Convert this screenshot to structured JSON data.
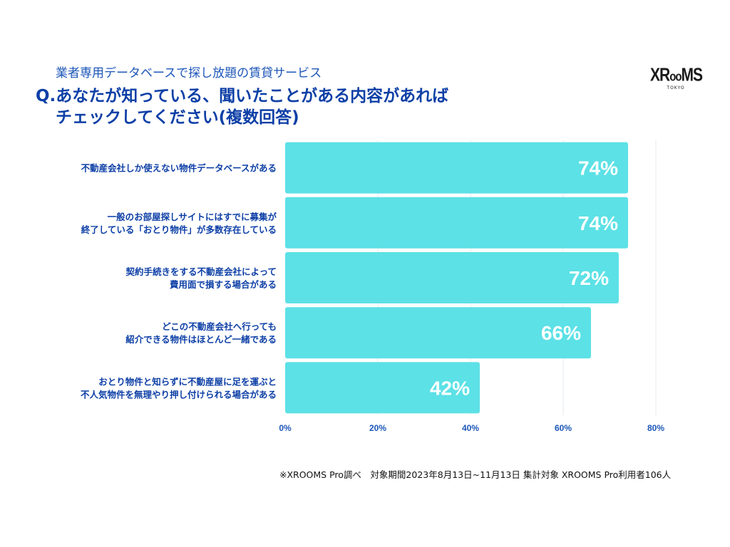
{
  "header": {
    "subtitle": "業者専用データベースで探し放題の賃貸サービス",
    "question_line1": "Q.あなたが知っている、聞いたことがある内容があれば",
    "question_line2": "チェックしてください(複数回答)"
  },
  "logo": {
    "brand_a": "XR",
    "brand_b": "oo",
    "brand_c": "MS",
    "city": "TOKYO"
  },
  "chart_data": {
    "type": "bar",
    "orientation": "horizontal",
    "categories": [
      [
        "不動産会社しか使えない物件データベースがある"
      ],
      [
        "一般のお部屋探しサイトにはすでに募集が",
        "終了している「おとり物件」が多数存在している"
      ],
      [
        "契約手続きをする不動産会社によって",
        "費用面で損する場合がある"
      ],
      [
        "どこの不動産会社へ行っても",
        "紹介できる物件はほとんど一緒である"
      ],
      [
        "おとり物件と知らずに不動産屋に足を運ぶと",
        "不人気物件を無理やり押し付けられる場合がある"
      ]
    ],
    "values": [
      74,
      74,
      72,
      66,
      42
    ],
    "data_labels": [
      "74%",
      "74%",
      "72%",
      "66%",
      "42%"
    ],
    "xlim": [
      0,
      80
    ],
    "xticks": [
      0,
      20,
      40,
      60,
      80
    ],
    "xtick_labels": [
      "0%",
      "20%",
      "40%",
      "60%",
      "80%"
    ],
    "grid": true,
    "bar_color": "#5ce1e6",
    "text_color": "#0d3fa6"
  },
  "footnote": "※XROOMS Pro調べ　対象期間2023年8月13日~11月13日 集計対象 XROOMS Pro利用者106人"
}
